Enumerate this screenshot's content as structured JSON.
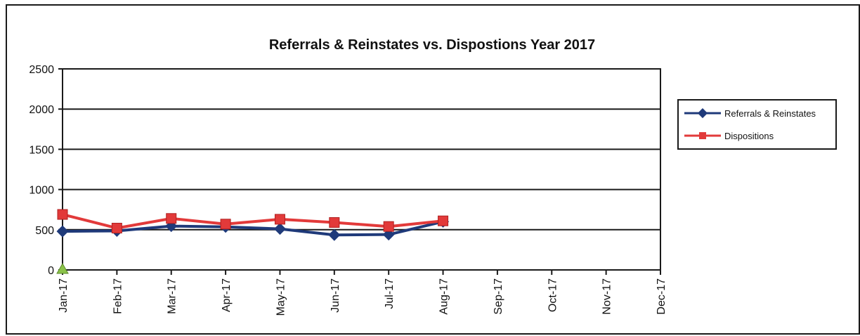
{
  "chart_data": {
    "type": "line",
    "title": "Referrals & Reinstates vs. Dispostions  Year 2017",
    "xlabel": "",
    "ylabel": "",
    "categories": [
      "Jan-17",
      "Feb-17",
      "Mar-17",
      "Apr-17",
      "May-17",
      "Jun-17",
      "Jul-17",
      "Aug-17",
      "Sep-17",
      "Oct-17",
      "Nov-17",
      "Dec-17"
    ],
    "ylim": [
      0,
      2500
    ],
    "yticks": [
      0,
      500,
      1000,
      1500,
      2000,
      2500
    ],
    "grid": true,
    "legend_position": "right",
    "series": [
      {
        "name": "Referrals & Reinstates",
        "color": "#1f3a7a",
        "marker": "diamond",
        "values": [
          480,
          485,
          545,
          535,
          510,
          435,
          440,
          600,
          null,
          null,
          null,
          null
        ]
      },
      {
        "name": "Dispositions",
        "color": "#e23a3a",
        "marker": "square",
        "values": [
          690,
          520,
          640,
          570,
          630,
          590,
          540,
          610,
          null,
          null,
          null,
          null
        ]
      }
    ],
    "annotations": [
      {
        "type": "marker",
        "shape": "triangle",
        "color": "#8bc34a",
        "category": "Jan-17",
        "value": 0
      }
    ]
  }
}
